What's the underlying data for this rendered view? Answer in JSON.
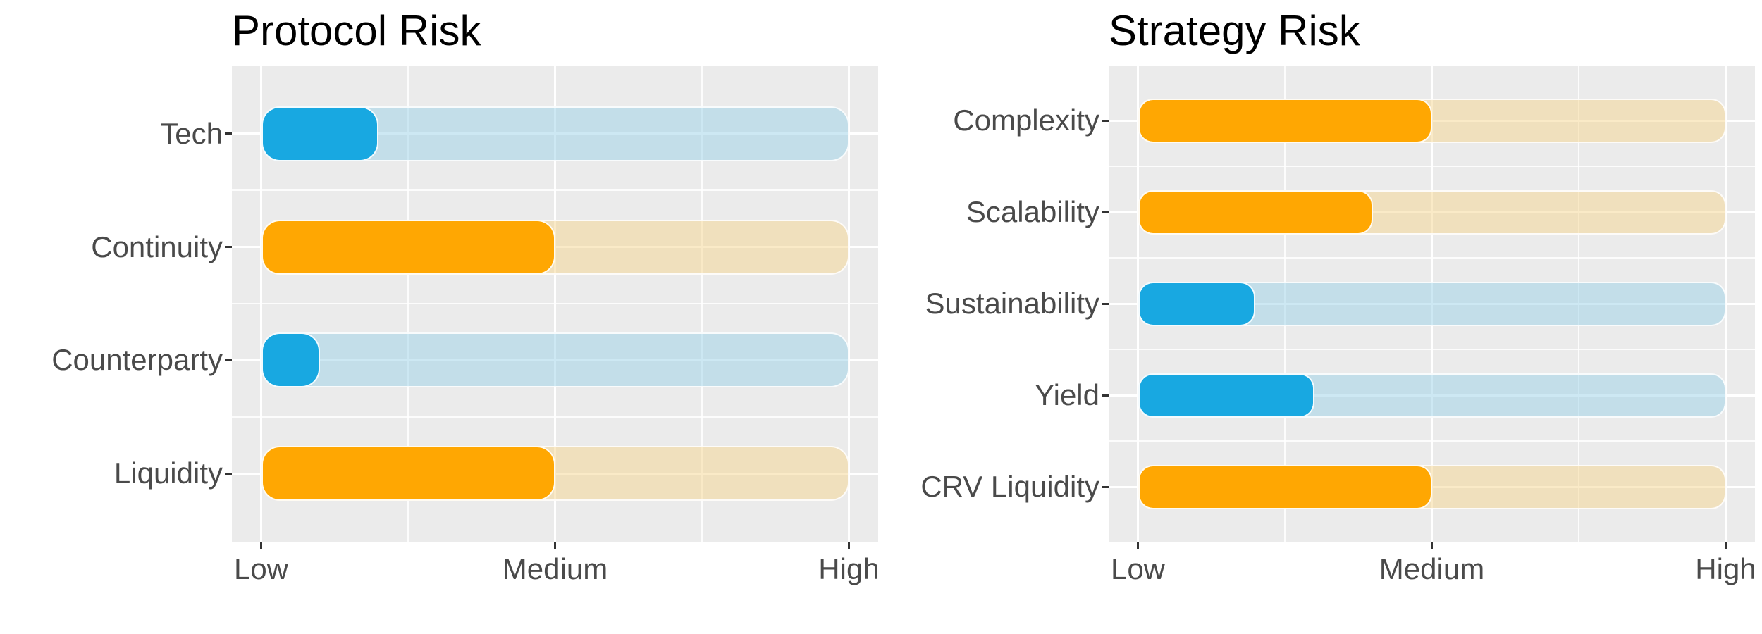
{
  "style": {
    "panel_bg": "#EBEBEB",
    "grid_color": "#FFFFFF",
    "title_color": "#000000",
    "axis_text_color": "#4A4A4A",
    "tick_color": "#333333",
    "bar_blue": "#18A8E1",
    "bar_orange": "#FFA702",
    "track_blue": "rgba(155,209,231,0.5)",
    "track_tan": "rgba(245,213,143,0.5)"
  },
  "chart_data": [
    {
      "type": "bar",
      "orientation": "horizontal",
      "title": "Protocol Risk",
      "categories": [
        "Tech",
        "Continuity",
        "Counterparty",
        "Liquidity"
      ],
      "values": [
        1.4,
        2.0,
        1.2,
        2.0
      ],
      "bar_colors": [
        "blue",
        "orange",
        "blue",
        "orange"
      ],
      "track_range": [
        1,
        3
      ],
      "x_tick_values": [
        1,
        2,
        3
      ],
      "x_tick_labels": [
        "Low",
        "Medium",
        "High"
      ],
      "xlim": [
        0.9,
        3.1
      ],
      "grid": "white major and minor gridlines on grey panel",
      "legend": "none",
      "ylabel": "",
      "xlabel": ""
    },
    {
      "type": "bar",
      "orientation": "horizontal",
      "title": "Strategy Risk",
      "categories": [
        "Complexity",
        "Scalability",
        "Sustainability",
        "Yield",
        "CRV Liquidity"
      ],
      "values": [
        2.0,
        1.8,
        1.4,
        1.6,
        2.0
      ],
      "bar_colors": [
        "orange",
        "orange",
        "blue",
        "blue",
        "orange"
      ],
      "track_range": [
        1,
        3
      ],
      "x_tick_values": [
        1,
        2,
        3
      ],
      "x_tick_labels": [
        "Low",
        "Medium",
        "High"
      ],
      "xlim": [
        0.9,
        3.1
      ],
      "grid": "white major and minor gridlines on grey panel",
      "legend": "none",
      "ylabel": "",
      "xlabel": ""
    }
  ]
}
